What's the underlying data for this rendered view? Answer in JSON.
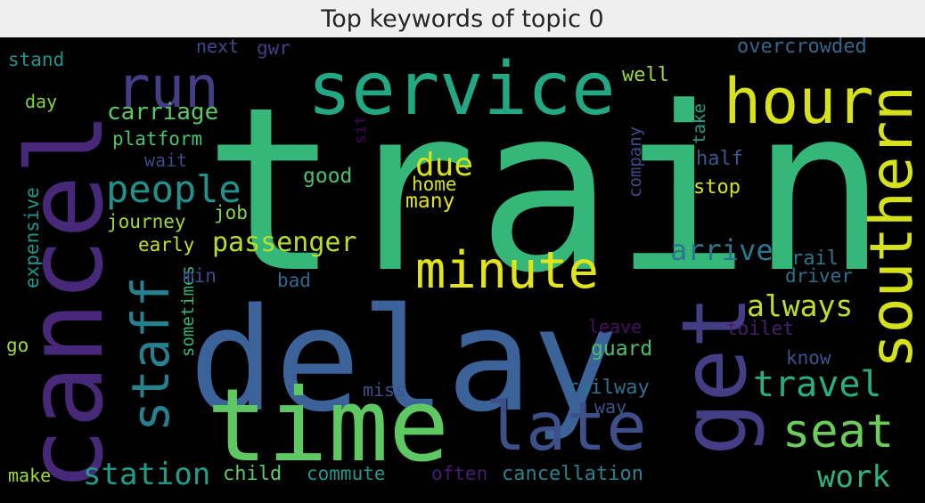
{
  "title": "Top keywords of topic 0",
  "words": [
    {
      "text": "train",
      "color": "#35b779",
      "vertical": false
    },
    {
      "text": "delay",
      "color": "#3b639a",
      "vertical": false
    },
    {
      "text": "time",
      "color": "#5ec962",
      "vertical": false
    },
    {
      "text": "get",
      "color": "#433e85",
      "vertical": true
    },
    {
      "text": "cancel",
      "color": "#482878",
      "vertical": true
    },
    {
      "text": "service",
      "color": "#22a884",
      "vertical": false
    },
    {
      "text": "hour",
      "color": "#d8e219",
      "vertical": false
    },
    {
      "text": "late",
      "color": "#3e5089",
      "vertical": false
    },
    {
      "text": "minute",
      "color": "#e2e418",
      "vertical": false
    },
    {
      "text": "run",
      "color": "#433e85",
      "vertical": false
    },
    {
      "text": "southern",
      "color": "#d5e21a",
      "vertical": true
    },
    {
      "text": "staff",
      "color": "#26818e",
      "vertical": true
    },
    {
      "text": "seat",
      "color": "#6ccd5a",
      "vertical": false
    },
    {
      "text": "people",
      "color": "#21918c",
      "vertical": false
    },
    {
      "text": "travel",
      "color": "#29af7f",
      "vertical": false
    },
    {
      "text": "passenger",
      "color": "#b5de2b",
      "vertical": false
    },
    {
      "text": "always",
      "color": "#bddf26",
      "vertical": false
    },
    {
      "text": "arrive",
      "color": "#2a778e",
      "vertical": false
    },
    {
      "text": "work",
      "color": "#2eb37c",
      "vertical": false
    },
    {
      "text": "station",
      "color": "#1f9e89",
      "vertical": false
    },
    {
      "text": "due",
      "color": "#d8e219",
      "vertical": false
    },
    {
      "text": "carriage",
      "color": "#5ec962",
      "vertical": false
    },
    {
      "text": "platform",
      "color": "#4ac16d",
      "vertical": false
    },
    {
      "text": "overcrowded",
      "color": "#31688e",
      "vertical": false
    },
    {
      "text": "company",
      "color": "#3e4a89",
      "vertical": true
    },
    {
      "text": "take",
      "color": "#1f9e89",
      "vertical": true
    },
    {
      "text": "sit",
      "color": "#440154",
      "vertical": true
    },
    {
      "text": "next",
      "color": "#3e4989",
      "vertical": false
    },
    {
      "text": "gwr",
      "color": "#433e85",
      "vertical": false
    },
    {
      "text": "stand",
      "color": "#1f968b",
      "vertical": false
    },
    {
      "text": "day",
      "color": "#7fd34e",
      "vertical": false
    },
    {
      "text": "well",
      "color": "#a0da39",
      "vertical": false
    },
    {
      "text": "wait",
      "color": "#3e4989",
      "vertical": false
    },
    {
      "text": "good",
      "color": "#4ac16d",
      "vertical": false
    },
    {
      "text": "home",
      "color": "#d5e21a",
      "vertical": false
    },
    {
      "text": "many",
      "color": "#e2e418",
      "vertical": false
    },
    {
      "text": "half",
      "color": "#38598c",
      "vertical": false
    },
    {
      "text": "stop",
      "color": "#d5e21a",
      "vertical": false
    },
    {
      "text": "expensive",
      "color": "#1f968b",
      "vertical": true
    },
    {
      "text": "journey",
      "color": "#a0da39",
      "vertical": false
    },
    {
      "text": "job",
      "color": "#86d549",
      "vertical": false
    },
    {
      "text": "early",
      "color": "#c8e020",
      "vertical": false
    },
    {
      "text": "sometimes",
      "color": "#32b67a",
      "vertical": true
    },
    {
      "text": "min",
      "color": "#3e4a89",
      "vertical": false
    },
    {
      "text": "bad",
      "color": "#31688e",
      "vertical": false
    },
    {
      "text": "rail",
      "color": "#2a788e",
      "vertical": false
    },
    {
      "text": "driver",
      "color": "#2c728e",
      "vertical": false
    },
    {
      "text": "leave",
      "color": "#471063",
      "vertical": false
    },
    {
      "text": "toilet",
      "color": "#481f70",
      "vertical": false
    },
    {
      "text": "guard",
      "color": "#4ac16d",
      "vertical": false
    },
    {
      "text": "know",
      "color": "#3b528b",
      "vertical": false
    },
    {
      "text": "go",
      "color": "#a0da39",
      "vertical": false
    },
    {
      "text": "miss",
      "color": "#3b528b",
      "vertical": false
    },
    {
      "text": "railway",
      "color": "#2c728e",
      "vertical": false
    },
    {
      "text": "way",
      "color": "#3b528b",
      "vertical": false
    },
    {
      "text": "make",
      "color": "#9bd93c",
      "vertical": false
    },
    {
      "text": "child",
      "color": "#5ec962",
      "vertical": false
    },
    {
      "text": "commute",
      "color": "#1f968b",
      "vertical": false
    },
    {
      "text": "often",
      "color": "#481a6c",
      "vertical": false
    },
    {
      "text": "cancellation",
      "color": "#26828e",
      "vertical": false
    }
  ]
}
